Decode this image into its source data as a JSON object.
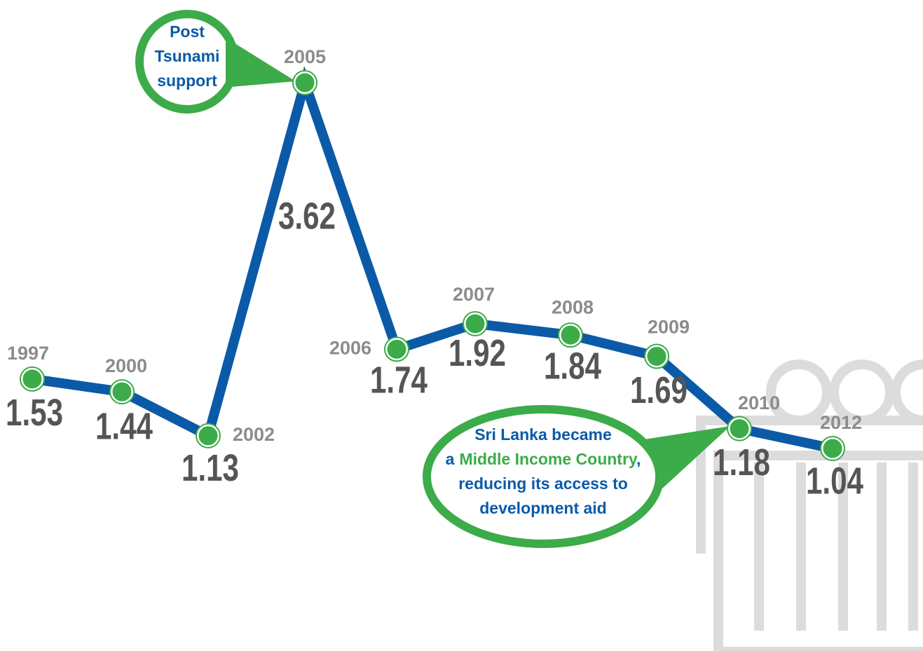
{
  "chart_data": {
    "type": "line",
    "categories": [
      "1997",
      "2000",
      "2002",
      "2005",
      "2006",
      "2007",
      "2008",
      "2009",
      "2010",
      "2012"
    ],
    "series": [
      {
        "color": "#0b5aa8",
        "values": [
          1.53,
          1.44,
          1.13,
          3.62,
          1.74,
          1.92,
          1.84,
          1.69,
          1.18,
          1.04
        ]
      }
    ],
    "marker_color": "#3cab49",
    "annotations": [
      {
        "lines": [
          "Post",
          "Tsunami",
          "support"
        ]
      },
      {
        "lines": [
          "Sri Lanka became",
          [
            "a",
            "Middle Income Country",
            ","
          ],
          "reducing its access to",
          "development aid"
        ]
      }
    ]
  }
}
